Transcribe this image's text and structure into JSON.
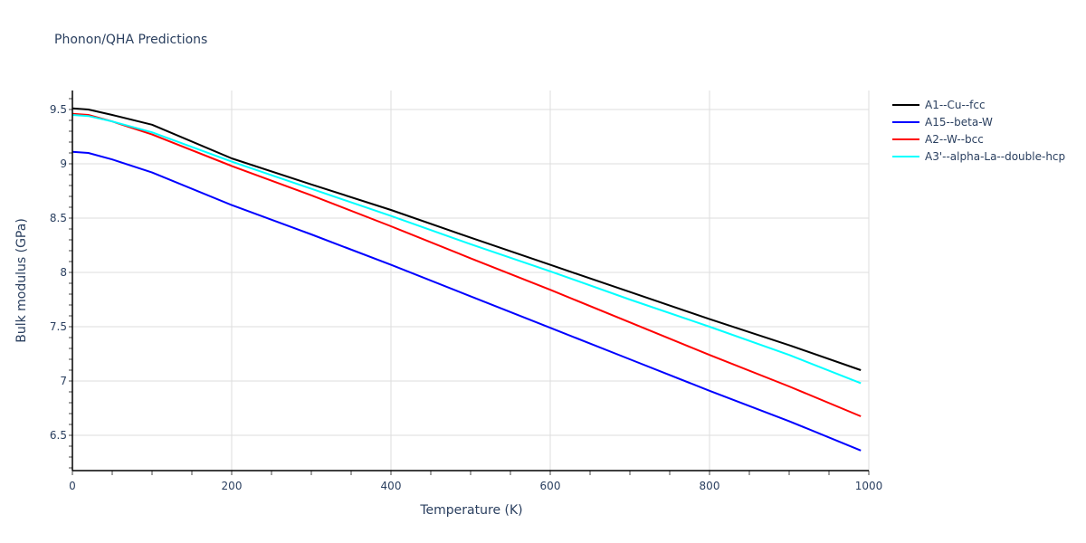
{
  "chart_data": {
    "type": "line",
    "title": "Phonon/QHA Predictions",
    "xlabel": "Temperature (K)",
    "ylabel": "Bulk modulus (GPa)",
    "xlim": [
      0,
      1000
    ],
    "ylim": [
      6.175,
      9.675
    ],
    "xticks": [
      0,
      200,
      400,
      600,
      800,
      1000
    ],
    "yticks": [
      6.5,
      7,
      7.5,
      8,
      8.5,
      9,
      9.5
    ],
    "ytick_labels": [
      "6.5",
      "7",
      "7.5",
      "8",
      "8.5",
      "9",
      "9.5"
    ],
    "grid": true,
    "legend_position": "right",
    "x": [
      0,
      20,
      50,
      100,
      200,
      300,
      400,
      500,
      600,
      700,
      800,
      900,
      990
    ],
    "series": [
      {
        "name": "A1--Cu--fcc",
        "color": "#000000",
        "values": [
          9.51,
          9.5,
          9.45,
          9.36,
          9.05,
          8.81,
          8.575,
          8.32,
          8.07,
          7.82,
          7.57,
          7.33,
          7.1
        ]
      },
      {
        "name": "A15--beta-W",
        "color": "#0000ff",
        "values": [
          9.11,
          9.1,
          9.04,
          8.92,
          8.62,
          8.35,
          8.07,
          7.78,
          7.49,
          7.2,
          6.91,
          6.63,
          6.36
        ]
      },
      {
        "name": "A2--W--bcc",
        "color": "#ff0000",
        "values": [
          9.46,
          9.45,
          9.39,
          9.27,
          8.98,
          8.71,
          8.425,
          8.13,
          7.84,
          7.54,
          7.24,
          6.95,
          6.675
        ]
      },
      {
        "name": "A3'--alpha-La--double-hcp",
        "color": "#00ffff",
        "values": [
          9.45,
          9.44,
          9.39,
          9.29,
          9.02,
          8.77,
          8.52,
          8.26,
          8.01,
          7.75,
          7.5,
          7.24,
          6.98
        ]
      }
    ]
  }
}
